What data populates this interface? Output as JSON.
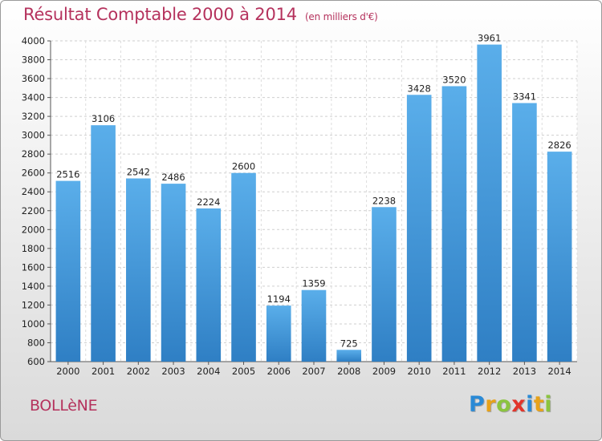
{
  "header": {
    "title": "Résultat Comptable 2000 à 2014",
    "subtitle": "(en milliers d'€)"
  },
  "footer": {
    "city": "BOLLèNE",
    "logo_letters": [
      {
        "ch": "P",
        "color": "#2a8ad6"
      },
      {
        "ch": "r",
        "color": "#e7a21a"
      },
      {
        "ch": "o",
        "color": "#8bc43f"
      },
      {
        "ch": "x",
        "color": "#e2352b"
      },
      {
        "ch": "i",
        "color": "#2a8ad6"
      },
      {
        "ch": "t",
        "color": "#e7a21a"
      },
      {
        "ch": "i",
        "color": "#8bc43f"
      }
    ]
  },
  "chart_data": {
    "type": "bar",
    "categories": [
      "2000",
      "2001",
      "2002",
      "2003",
      "2004",
      "2005",
      "2006",
      "2007",
      "2008",
      "2009",
      "2010",
      "2011",
      "2012",
      "2013",
      "2014"
    ],
    "values": [
      2516,
      3106,
      2542,
      2486,
      2224,
      2600,
      1194,
      1359,
      725,
      2238,
      3428,
      3520,
      3961,
      3341,
      2826
    ],
    "ylim": [
      600,
      4000
    ],
    "yticks": [
      600,
      800,
      1000,
      1200,
      1400,
      1600,
      1800,
      2000,
      2200,
      2400,
      2600,
      2800,
      3000,
      3200,
      3400,
      3600,
      3800,
      4000
    ],
    "grid": true,
    "bar_color": "#4a9ee0",
    "title": "Résultat Comptable 2000 à 2014",
    "xlabel": "",
    "ylabel": ""
  }
}
